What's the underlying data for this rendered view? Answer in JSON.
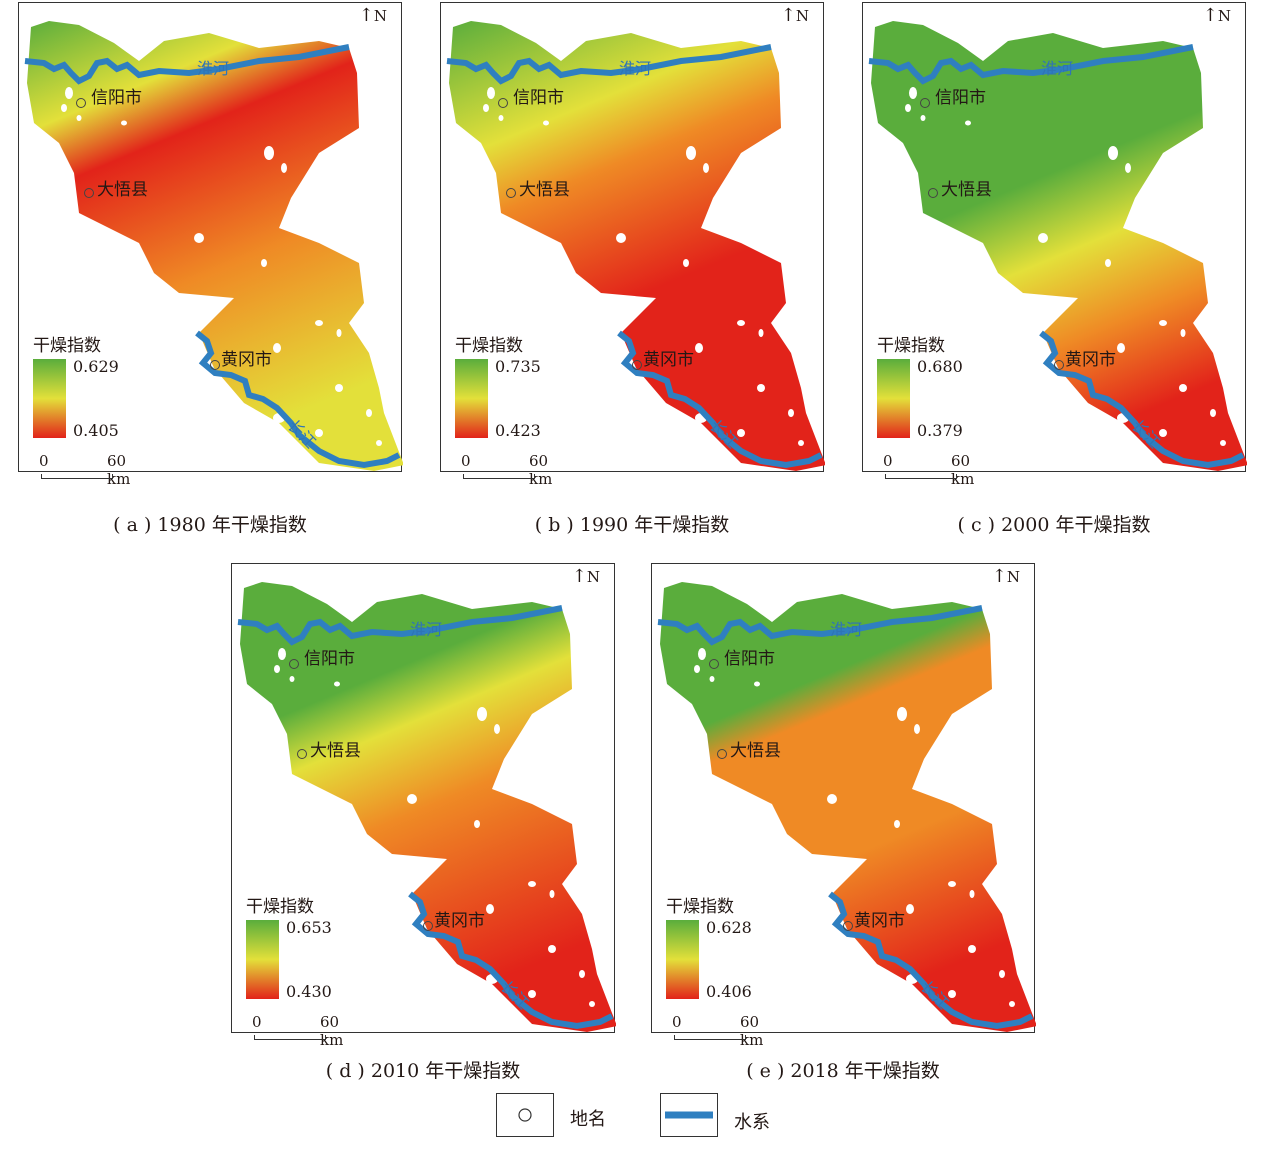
{
  "north_label": "N",
  "legend_title": "干燥指数",
  "scale": {
    "zero": "0",
    "distance": "60 km"
  },
  "places": {
    "xinyang": "信阳市",
    "dawu": "大悟县",
    "huanggang": "黄冈市"
  },
  "rivers": {
    "huai": "淮河",
    "changjiang": "长江"
  },
  "colors": {
    "green": "#5aad3c",
    "yellow": "#e3e03a",
    "orange": "#ef8a25",
    "red": "#e2231a",
    "river": "#2f7fc0"
  },
  "panels": [
    {
      "caption": "( a ) 1980 年干燥指数",
      "max": "0.629",
      "min": "0.405"
    },
    {
      "caption": "( b ) 1990 年干燥指数",
      "max": "0.735",
      "min": "0.423"
    },
    {
      "caption": "( c ) 2000 年干燥指数",
      "max": "0.680",
      "min": "0.379"
    },
    {
      "caption": "( d ) 2010 年干燥指数",
      "max": "0.653",
      "min": "0.430"
    },
    {
      "caption": "( e ) 2018 年干燥指数",
      "max": "0.628",
      "min": "0.406"
    }
  ],
  "bottom_legend": {
    "place_label": "地名",
    "water_label": "水系"
  }
}
